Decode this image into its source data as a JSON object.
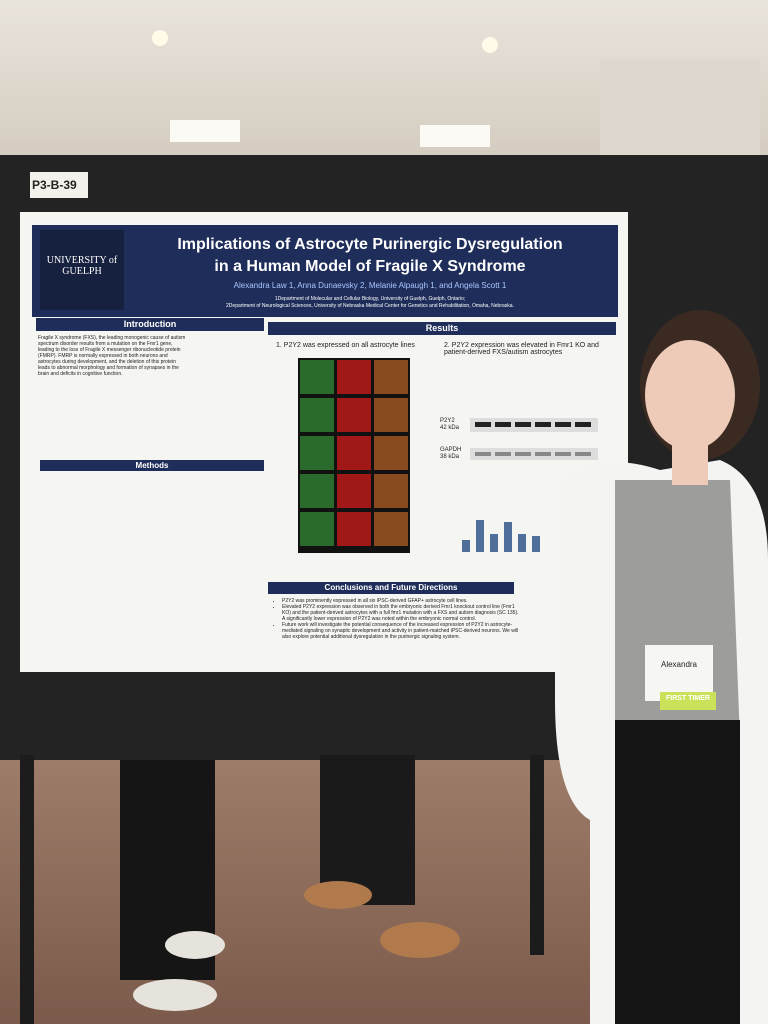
{
  "board_label": "P3-B-39",
  "poster": {
    "logo": "UNIVERSITY of GUELPH",
    "title": [
      "Implications of Astrocyte Purinergic Dysregulation",
      "in a Human Model of Fragile X Syndrome"
    ],
    "authors": "Alexandra Law 1, Anna Dunaevsky 2, Melanie Alpaugh 1, and Angela Scott 1",
    "affiliations": [
      "1Department of Molecular and Cellular Biology, University of Guelph, Guelph, Ontario;",
      "2Department of Neurological Sciences, University of Nebraska Medical Center for Genetics and Rehabilitation, Omaha, Nebraska."
    ],
    "sections": {
      "introduction": "Introduction",
      "methods": "Methods",
      "results": "Results",
      "conclusions": "Conclusions and Future Directions"
    },
    "introduction_text": "Fragile X syndrome (FXS), the leading monogenic cause of autism spectrum disorder results from a mutation on the Fmr1 gene, leading to the loss of Fragile X messenger ribonucleotide protein (FMRP). FMRP is normally expressed in both neurons and astrocytes during development, and the deletion of this protein leads to abnormal morphology and formation of synapses in the brain and deficits in cognitive function.",
    "results": {
      "finding_1": "1. P2Y2 was expressed on all astrocyte lines",
      "finding_2": "2. P2Y2 expression was elevated in Fmr1 KO and patient-derived FXS/autism astrocytes",
      "blot_labels": [
        "P2Y2",
        "42 kDa",
        "GAPDH",
        "38 kDa"
      ]
    },
    "conclusions": [
      "P2Y2 was prominently expressed in all six iPSC-derived GFAP+ astrocyte cell lines.",
      "Elevated P2Y2 expression was observed in both the embryonic derived Fmr1 knockout control line (Fmr1 KO) and the patient-derived astrocytes with a full fmr1 mutation with a FXS and autism diagnosis (SC 135). A significantly lower expression of P2Y2 was noted within the embryonic normal control.",
      "Future work will investigate the potential consequence of the increased expression of P2Y2 in astrocyte-mediated signaling on synaptic development and activity in patient-matched iPSC-derived neurons. We will also explore potential additional dysregulation in the purinergic signaling system."
    ]
  },
  "badge": {
    "name": "Alexandra",
    "tag": "FIRST TIMER"
  }
}
